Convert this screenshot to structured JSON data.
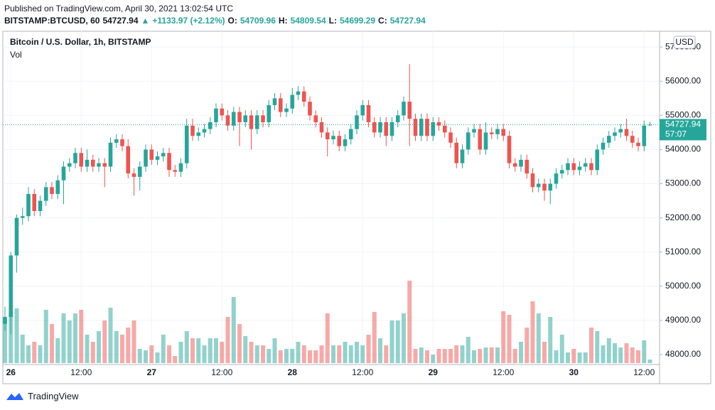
{
  "header": {
    "published": "Published on TradingView.com, April 30, 2021 13:02:54 UTC",
    "symbol": "BITSTAMP:BTCUSD, 60",
    "change_label": "+1133.97 (+2.12%)",
    "ohlc_labels": [
      "O:",
      "H:",
      "L:",
      "C:"
    ]
  },
  "footer": "TradingView",
  "chart_data": {
    "type": "candlestick",
    "title": "Bitcoin / U.S. Dollar, 1h, BITSTAMP",
    "volume_label": "Vol",
    "currency": "USD",
    "countdown": "57:07",
    "up_color": "#26a69a",
    "down_color": "#ef5350",
    "grid": true,
    "ylim": [
      47750,
      57420
    ],
    "yticks": [
      {
        "value": 48000,
        "label": "48000.00"
      },
      {
        "value": 49000,
        "label": "49000.00"
      },
      {
        "value": 50000,
        "label": "50000.00"
      },
      {
        "value": 51000,
        "label": "51000.00"
      },
      {
        "value": 52000,
        "label": "52000.00"
      },
      {
        "value": 53000,
        "label": "53000.00"
      },
      {
        "value": 54000,
        "label": "54000.00"
      },
      {
        "value": 55000,
        "label": "55000.00"
      },
      {
        "value": 56000,
        "label": "56000.00"
      },
      {
        "value": 57000,
        "label": "57000.00"
      }
    ],
    "categories": [
      null,
      "26",
      null,
      null,
      null,
      null,
      null,
      null,
      null,
      null,
      null,
      null,
      null,
      "12:00",
      null,
      null,
      null,
      null,
      null,
      null,
      null,
      null,
      null,
      null,
      null,
      "27",
      null,
      null,
      null,
      null,
      null,
      null,
      null,
      null,
      null,
      null,
      null,
      "12:00",
      null,
      null,
      null,
      null,
      null,
      null,
      null,
      null,
      null,
      null,
      null,
      "28",
      null,
      null,
      null,
      null,
      null,
      null,
      null,
      null,
      null,
      null,
      null,
      "12:00",
      null,
      null,
      null,
      null,
      null,
      null,
      null,
      null,
      null,
      null,
      null,
      "29",
      null,
      null,
      null,
      null,
      null,
      null,
      null,
      null,
      null,
      null,
      null,
      "12:00",
      null,
      null,
      null,
      null,
      null,
      null,
      null,
      null,
      null,
      null,
      null,
      "30",
      null,
      null,
      null,
      null,
      null,
      null,
      null,
      null,
      null,
      null,
      null,
      "12:00",
      null
    ],
    "open": [
      48900,
      49100,
      50900,
      52000,
      52050,
      52700,
      52200,
      52500,
      52900,
      52700,
      53100,
      53500,
      53600,
      53900,
      53500,
      53700,
      53500,
      53600,
      53500,
      54200,
      54300,
      54100,
      53300,
      53200,
      53500,
      54000,
      53700,
      53800,
      53900,
      53400,
      53350,
      53600,
      54700,
      54400,
      54500,
      54600,
      54800,
      55200,
      55000,
      54700,
      55100,
      54800,
      55000,
      54600,
      55000,
      54800,
      55300,
      55500,
      55100,
      55200,
      55600,
      55700,
      55400,
      55000,
      54800,
      54500,
      54300,
      54400,
      54100,
      54300,
      54600,
      55000,
      55300,
      54800,
      54500,
      54800,
      54400,
      54800,
      55000,
      55400,
      54900,
      54400,
      54900,
      54400,
      54800,
      54700,
      54500,
      54200,
      53600,
      54000,
      54500,
      54600,
      54000,
      54500,
      54450,
      54600,
      54400,
      53600,
      53500,
      53700,
      53300,
      52900,
      53000,
      52800,
      53000,
      53300,
      53400,
      53600,
      53400,
      53500,
      53600,
      53400,
      54000,
      54200,
      54400,
      54500,
      54600,
      54400,
      54200,
      54100,
      54709.96
    ],
    "high": [
      49400,
      51000,
      52100,
      52300,
      52900,
      52850,
      52650,
      53050,
      53050,
      53250,
      53650,
      53750,
      54050,
      54050,
      54000,
      53850,
      53750,
      53750,
      54350,
      54450,
      54450,
      54300,
      53450,
      53650,
      54150,
      54150,
      53950,
      54050,
      54050,
      53550,
      53750,
      54900,
      54900,
      54650,
      54750,
      54950,
      55350,
      55350,
      55150,
      55250,
      55250,
      55150,
      55150,
      55150,
      55150,
      55450,
      55650,
      55650,
      55350,
      55800,
      55850,
      55850,
      55550,
      55150,
      54950,
      54650,
      54550,
      54550,
      54450,
      54750,
      55150,
      55450,
      55450,
      54950,
      54950,
      54950,
      54950,
      55150,
      55550,
      56500,
      55050,
      55050,
      55050,
      54950,
      54950,
      54850,
      54650,
      54350,
      54150,
      54650,
      54750,
      54750,
      54800,
      54650,
      54750,
      54750,
      54550,
      53750,
      53850,
      53850,
      53450,
      53150,
      53150,
      53150,
      53450,
      53550,
      53750,
      53750,
      53650,
      53750,
      53750,
      54150,
      54350,
      54550,
      54650,
      54750,
      54900,
      54550,
      54350,
      54850,
      54809.54
    ],
    "low": [
      48700,
      48600,
      50400,
      51800,
      51900,
      52050,
      52050,
      52350,
      52550,
      52550,
      52400,
      53350,
      53450,
      53350,
      53350,
      53350,
      53350,
      52900,
      53350,
      54050,
      53950,
      53150,
      52650,
      52800,
      53350,
      53550,
      53550,
      53650,
      53200,
      53200,
      53200,
      53450,
      54250,
      54250,
      54350,
      54450,
      54650,
      54850,
      54550,
      54550,
      54100,
      54650,
      54000,
      54450,
      54650,
      54650,
      55150,
      54950,
      54950,
      55050,
      55450,
      55250,
      54850,
      54650,
      54350,
      53800,
      54150,
      53950,
      53950,
      54150,
      54450,
      54850,
      54650,
      54350,
      54350,
      54100,
      54250,
      54650,
      54850,
      54100,
      54250,
      54250,
      54250,
      54250,
      54550,
      54350,
      54050,
      53450,
      53450,
      53850,
      54350,
      53850,
      53850,
      54300,
      54300,
      54250,
      53450,
      53350,
      53350,
      53150,
      52750,
      52750,
      52500,
      52400,
      52850,
      53150,
      53250,
      53250,
      53250,
      53350,
      53250,
      53250,
      53850,
      54050,
      54250,
      54350,
      54250,
      54050,
      53950,
      53950,
      54699.29
    ],
    "close": [
      49100,
      50900,
      52000,
      52050,
      52700,
      52200,
      52500,
      52900,
      52700,
      53100,
      53500,
      53600,
      53900,
      53500,
      53700,
      53500,
      53600,
      53500,
      54200,
      54300,
      54100,
      53300,
      53200,
      53500,
      54000,
      53700,
      53800,
      53900,
      53400,
      53350,
      53600,
      54700,
      54400,
      54500,
      54600,
      54800,
      55200,
      55000,
      54700,
      55100,
      54800,
      55000,
      54600,
      55000,
      54800,
      55300,
      55500,
      55100,
      55200,
      55600,
      55700,
      55400,
      55000,
      54800,
      54500,
      54300,
      54400,
      54100,
      54300,
      54600,
      55000,
      55300,
      54800,
      54500,
      54800,
      54400,
      54800,
      55000,
      55400,
      54900,
      54400,
      54900,
      54400,
      54800,
      54700,
      54500,
      54200,
      53600,
      54000,
      54500,
      54600,
      54000,
      54500,
      54450,
      54600,
      54400,
      53600,
      53500,
      53700,
      53300,
      52900,
      53000,
      52800,
      53000,
      53300,
      53400,
      53600,
      53400,
      53500,
      53600,
      53400,
      54000,
      54200,
      54400,
      54500,
      54600,
      54400,
      54200,
      54100,
      54700,
      54727.94
    ],
    "volume": [
      60,
      70,
      77,
      40,
      25,
      30,
      25,
      75,
      55,
      35,
      70,
      60,
      70,
      75,
      40,
      30,
      45,
      60,
      78,
      45,
      40,
      50,
      60,
      20,
      18,
      25,
      15,
      40,
      25,
      10,
      30,
      45,
      35,
      35,
      25,
      35,
      35,
      30,
      65,
      93,
      55,
      38,
      30,
      25,
      25,
      20,
      35,
      18,
      20,
      20,
      30,
      25,
      18,
      18,
      25,
      70,
      25,
      25,
      30,
      25,
      30,
      25,
      40,
      72,
      35,
      25,
      60,
      60,
      70,
      116,
      20,
      22,
      18,
      12,
      20,
      20,
      20,
      25,
      25,
      37,
      18,
      20,
      22,
      22,
      22,
      73,
      68,
      20,
      30,
      50,
      87,
      70,
      30,
      65,
      18,
      40,
      15,
      20,
      15,
      15,
      50,
      45,
      25,
      35,
      28,
      22,
      28,
      22,
      18,
      32,
      5
    ]
  }
}
